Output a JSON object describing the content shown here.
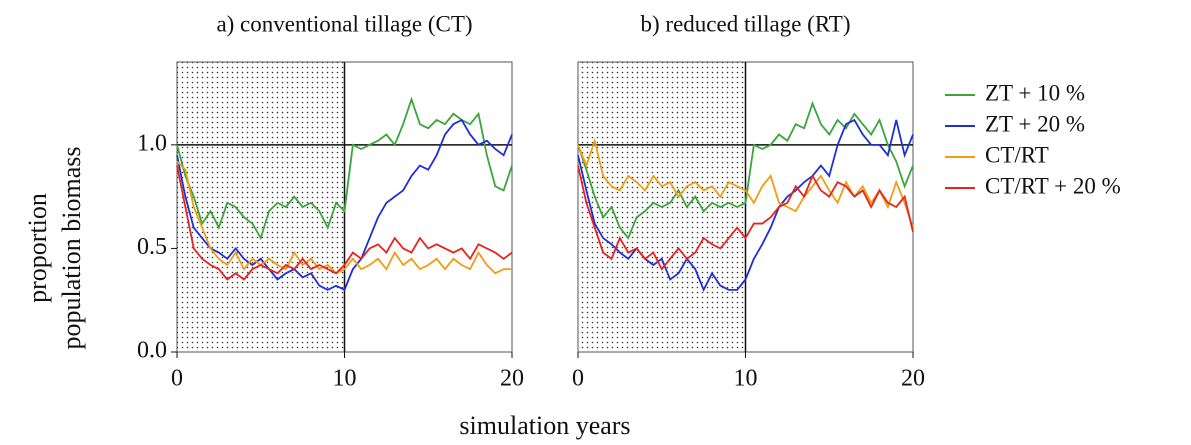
{
  "xlabel": "simulation years",
  "ylabel": [
    "proportion",
    "population  biomass"
  ],
  "chart_data": [
    {
      "type": "line",
      "title": "a)  conventional tillage (CT)",
      "xlim": [
        0,
        20
      ],
      "ylim": [
        0,
        1.4
      ],
      "xticks": [
        0,
        10,
        20
      ],
      "yticks": [
        {
          "value": 0,
          "label": "0.0"
        },
        0.5,
        {
          "value": 1,
          "label": "1.0"
        }
      ],
      "shaded_region": [
        0,
        10
      ],
      "hline": 1,
      "vline": 10,
      "x": [
        0,
        0.5,
        1,
        1.5,
        2,
        2.5,
        3,
        3.5,
        4,
        4.5,
        5,
        5.5,
        6,
        6.5,
        7,
        7.5,
        8,
        8.5,
        9,
        9.5,
        10,
        10.5,
        11,
        11.5,
        12,
        12.5,
        13,
        13.5,
        14,
        14.5,
        15,
        15.5,
        16,
        16.5,
        17,
        17.5,
        18,
        18.5,
        19,
        19.5,
        20
      ],
      "series": [
        {
          "name": "ZT + 10 %",
          "color": "#3aa63a",
          "values": [
            1.0,
            0.85,
            0.75,
            0.62,
            0.68,
            0.6,
            0.72,
            0.7,
            0.65,
            0.62,
            0.55,
            0.68,
            0.72,
            0.7,
            0.75,
            0.7,
            0.72,
            0.68,
            0.6,
            0.72,
            0.68,
            1.0,
            0.98,
            1.0,
            1.02,
            1.05,
            1.0,
            1.1,
            1.22,
            1.1,
            1.08,
            1.12,
            1.1,
            1.15,
            1.12,
            1.1,
            1.15,
            0.95,
            0.8,
            0.78,
            0.9
          ]
        },
        {
          "name": "ZT + 20 %",
          "color": "#1f2fd6",
          "values": [
            0.95,
            0.75,
            0.6,
            0.55,
            0.5,
            0.48,
            0.45,
            0.5,
            0.45,
            0.42,
            0.45,
            0.4,
            0.35,
            0.38,
            0.4,
            0.36,
            0.38,
            0.32,
            0.3,
            0.32,
            0.3,
            0.4,
            0.45,
            0.55,
            0.65,
            0.72,
            0.75,
            0.78,
            0.85,
            0.9,
            0.88,
            0.95,
            1.05,
            1.1,
            1.12,
            1.05,
            1.0,
            1.02,
            0.98,
            0.95,
            1.05
          ]
        },
        {
          "name": "CT/RT",
          "color": "#f39c12",
          "values": [
            0.92,
            0.88,
            0.7,
            0.6,
            0.5,
            0.45,
            0.42,
            0.48,
            0.4,
            0.45,
            0.42,
            0.45,
            0.42,
            0.4,
            0.48,
            0.42,
            0.45,
            0.4,
            0.42,
            0.38,
            0.4,
            0.45,
            0.4,
            0.42,
            0.45,
            0.4,
            0.48,
            0.42,
            0.45,
            0.4,
            0.42,
            0.45,
            0.4,
            0.45,
            0.42,
            0.4,
            0.48,
            0.42,
            0.38,
            0.4,
            0.4
          ]
        },
        {
          "name": "CT/RT + 20 %",
          "color": "#e8231e",
          "values": [
            0.9,
            0.7,
            0.5,
            0.45,
            0.42,
            0.4,
            0.35,
            0.38,
            0.35,
            0.4,
            0.42,
            0.4,
            0.38,
            0.42,
            0.4,
            0.45,
            0.4,
            0.42,
            0.4,
            0.38,
            0.42,
            0.48,
            0.45,
            0.5,
            0.52,
            0.48,
            0.55,
            0.5,
            0.48,
            0.55,
            0.5,
            0.52,
            0.5,
            0.48,
            0.5,
            0.45,
            0.52,
            0.5,
            0.48,
            0.45,
            0.48
          ]
        }
      ]
    },
    {
      "type": "line",
      "title": "b)  reduced tillage (RT)",
      "xlim": [
        0,
        20
      ],
      "ylim": [
        0,
        1.4
      ],
      "xticks": [
        0,
        10,
        20
      ],
      "shaded_region": [
        0,
        10
      ],
      "hline": 1,
      "vline": 10,
      "x": [
        0,
        0.5,
        1,
        1.5,
        2,
        2.5,
        3,
        3.5,
        4,
        4.5,
        5,
        5.5,
        6,
        6.5,
        7,
        7.5,
        8,
        8.5,
        9,
        9.5,
        10,
        10.5,
        11,
        11.5,
        12,
        12.5,
        13,
        13.5,
        14,
        14.5,
        15,
        15.5,
        16,
        16.5,
        17,
        17.5,
        18,
        18.5,
        19,
        19.5,
        20
      ],
      "series": [
        {
          "color": "#3aa63a",
          "values": [
            1.0,
            0.88,
            0.75,
            0.65,
            0.7,
            0.6,
            0.55,
            0.65,
            0.68,
            0.72,
            0.7,
            0.72,
            0.78,
            0.7,
            0.75,
            0.68,
            0.72,
            0.7,
            0.72,
            0.7,
            0.72,
            1.0,
            0.98,
            1.0,
            1.05,
            1.02,
            1.1,
            1.08,
            1.2,
            1.1,
            1.05,
            1.12,
            1.08,
            1.15,
            1.1,
            1.05,
            1.12,
            1.0,
            0.92,
            0.8,
            0.9
          ]
        },
        {
          "color": "#1f2fd6",
          "values": [
            0.95,
            0.78,
            0.62,
            0.55,
            0.52,
            0.48,
            0.45,
            0.5,
            0.45,
            0.42,
            0.45,
            0.35,
            0.38,
            0.45,
            0.4,
            0.3,
            0.38,
            0.32,
            0.3,
            0.3,
            0.35,
            0.45,
            0.52,
            0.6,
            0.7,
            0.75,
            0.78,
            0.82,
            0.85,
            0.9,
            0.85,
            1.0,
            1.1,
            1.12,
            1.05,
            1.0,
            1.0,
            0.95,
            1.12,
            0.95,
            1.05
          ]
        },
        {
          "color": "#f39c12",
          "values": [
            1.0,
            0.9,
            1.02,
            0.85,
            0.8,
            0.78,
            0.85,
            0.82,
            0.78,
            0.85,
            0.8,
            0.82,
            0.75,
            0.8,
            0.82,
            0.78,
            0.8,
            0.75,
            0.82,
            0.8,
            0.78,
            0.72,
            0.8,
            0.85,
            0.72,
            0.7,
            0.68,
            0.75,
            0.8,
            0.85,
            0.78,
            0.72,
            0.82,
            0.75,
            0.8,
            0.72,
            0.78,
            0.7,
            0.82,
            0.72,
            0.6
          ]
        },
        {
          "color": "#e8231e",
          "values": [
            0.9,
            0.72,
            0.6,
            0.48,
            0.45,
            0.55,
            0.48,
            0.5,
            0.45,
            0.48,
            0.4,
            0.45,
            0.5,
            0.45,
            0.48,
            0.55,
            0.52,
            0.5,
            0.55,
            0.6,
            0.55,
            0.62,
            0.62,
            0.65,
            0.7,
            0.72,
            0.8,
            0.75,
            0.85,
            0.78,
            0.75,
            0.82,
            0.8,
            0.75,
            0.78,
            0.7,
            0.78,
            0.72,
            0.7,
            0.75,
            0.58
          ]
        }
      ]
    }
  ]
}
